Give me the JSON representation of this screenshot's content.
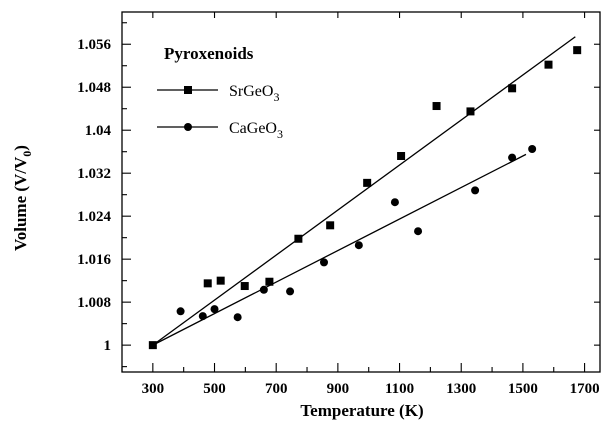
{
  "chart_data": {
    "type": "scatter",
    "xlabel": "Temperature (K)",
    "ylabel_main": "Volume (V/V",
    "ylabel_sub": "0",
    "ylabel_end": ")",
    "xlim": [
      200,
      1750
    ],
    "ylim": [
      0.995,
      1.062
    ],
    "x_ticks": [
      300,
      500,
      700,
      900,
      1100,
      1300,
      1500,
      1700
    ],
    "x_tick_labels": [
      "300",
      "500",
      "700",
      "900",
      "1100",
      "1300",
      "1500",
      "1700"
    ],
    "y_ticks": [
      1.0,
      1.008,
      1.016,
      1.024,
      1.032,
      1.04,
      1.048,
      1.056
    ],
    "y_tick_labels": [
      "1",
      "1.008",
      "1.016",
      "1.024",
      "1.032",
      "1.04",
      "1.048",
      "1.056"
    ],
    "legend": {
      "title": "Pyroxenoids",
      "placement": "top-left",
      "entries": [
        {
          "label_main": "SrGeO",
          "label_sub": "3",
          "marker": "square"
        },
        {
          "label_main": "CaGeO",
          "label_sub": "3",
          "marker": "circle"
        }
      ]
    },
    "series": [
      {
        "name": "SrGeO3",
        "marker": "square",
        "x": [
          300,
          478,
          520,
          598,
          678,
          772,
          875,
          995,
          1105,
          1220,
          1330,
          1465,
          1583,
          1676
        ],
        "y": [
          1.0,
          1.0115,
          1.012,
          1.011,
          1.0118,
          1.0198,
          1.0223,
          1.0302,
          1.0352,
          1.0445,
          1.0435,
          1.0478,
          1.0522,
          1.0549
        ],
        "fit": {
          "x": [
            300,
            1670
          ],
          "y": [
            1.0,
            1.0574
          ]
        }
      },
      {
        "name": "CaGeO3",
        "marker": "circle",
        "x": [
          390,
          462,
          500,
          575,
          660,
          745,
          855,
          968,
          1085,
          1160,
          1345,
          1465,
          1530
        ],
        "y": [
          1.0063,
          1.0054,
          1.0067,
          1.0052,
          1.0103,
          1.01,
          1.0154,
          1.0186,
          1.0266,
          1.0212,
          1.0288,
          1.0349,
          1.0365
        ],
        "fit": {
          "x": [
            300,
            1510
          ],
          "y": [
            1.0,
            1.0355
          ]
        }
      }
    ]
  }
}
